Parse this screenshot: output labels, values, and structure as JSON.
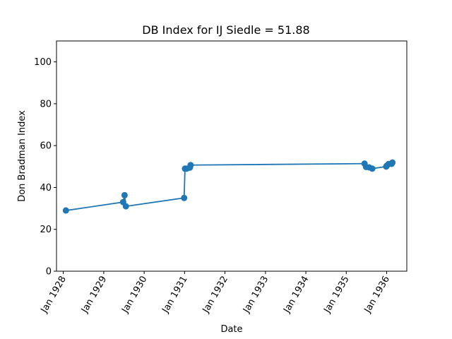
{
  "chart_data": {
    "type": "line",
    "title": "DB Index for IJ Siedle = 51.88",
    "xlabel": "Date",
    "ylabel": "Don Bradman Index",
    "xlim": [
      "1927-11-01",
      "1936-07-01"
    ],
    "ylim": [
      0,
      110
    ],
    "x_ticks": [
      "1928-01-01",
      "1929-01-01",
      "1930-01-01",
      "1931-01-01",
      "1932-01-01",
      "1933-01-01",
      "1934-01-01",
      "1935-01-01",
      "1936-01-01"
    ],
    "x_tick_labels": [
      "Jan 1928",
      "Jan 1929",
      "Jan 1930",
      "Jan 1931",
      "Jan 1932",
      "Jan 1933",
      "Jan 1934",
      "Jan 1935",
      "Jan 1936"
    ],
    "y_ticks": [
      0,
      20,
      40,
      60,
      80,
      100
    ],
    "y_tick_labels": [
      "0",
      "20",
      "40",
      "60",
      "80",
      "100"
    ],
    "grid": false,
    "color": "#1f77b4",
    "series": [
      {
        "x": [
          "1928-01-25",
          "1929-06-25",
          "1929-07-08",
          "1929-07-20",
          "1930-12-28",
          "1931-01-05",
          "1931-01-20",
          "1931-02-18",
          "1931-02-25",
          "1935-06-15",
          "1935-06-29",
          "1935-07-27",
          "1935-08-24",
          "1935-12-28",
          "1936-01-02",
          "1936-01-18",
          "1936-02-15",
          "1936-02-22"
        ],
        "y": [
          29.0,
          33.0,
          36.3,
          31.0,
          35.0,
          49.0,
          49.0,
          49.5,
          50.7,
          51.4,
          49.8,
          49.6,
          49.0,
          50.0,
          50.4,
          51.2,
          51.3,
          51.9
        ]
      }
    ]
  }
}
